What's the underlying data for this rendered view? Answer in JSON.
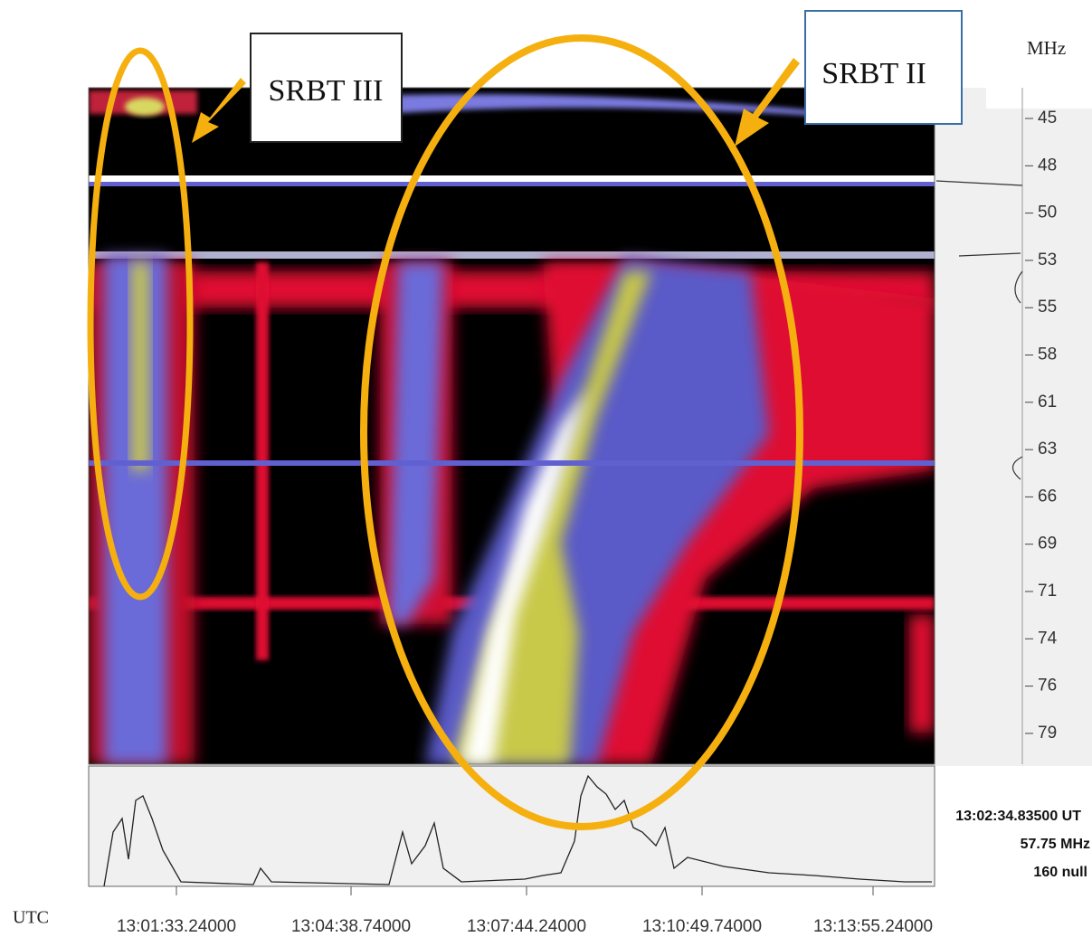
{
  "spectrogram": {
    "unit_label": "MHz",
    "frequency_ticks": [
      "45",
      "48",
      "50",
      "53",
      "55",
      "58",
      "61",
      "63",
      "66",
      "69",
      "71",
      "74",
      "76",
      "79"
    ],
    "time_axis_label": "UTC",
    "time_ticks": [
      "13:01:33.24000",
      "13:04:38.74000",
      "13:07:44.24000",
      "13:10:49.74000",
      "13:13:55.24000"
    ]
  },
  "annotations": [
    {
      "label": "SRBT III"
    },
    {
      "label": "SRBT II"
    }
  ],
  "readout": {
    "time": "13:02:34.83500 UT",
    "frequency": "57.75 MHz",
    "value": "160 null"
  }
}
